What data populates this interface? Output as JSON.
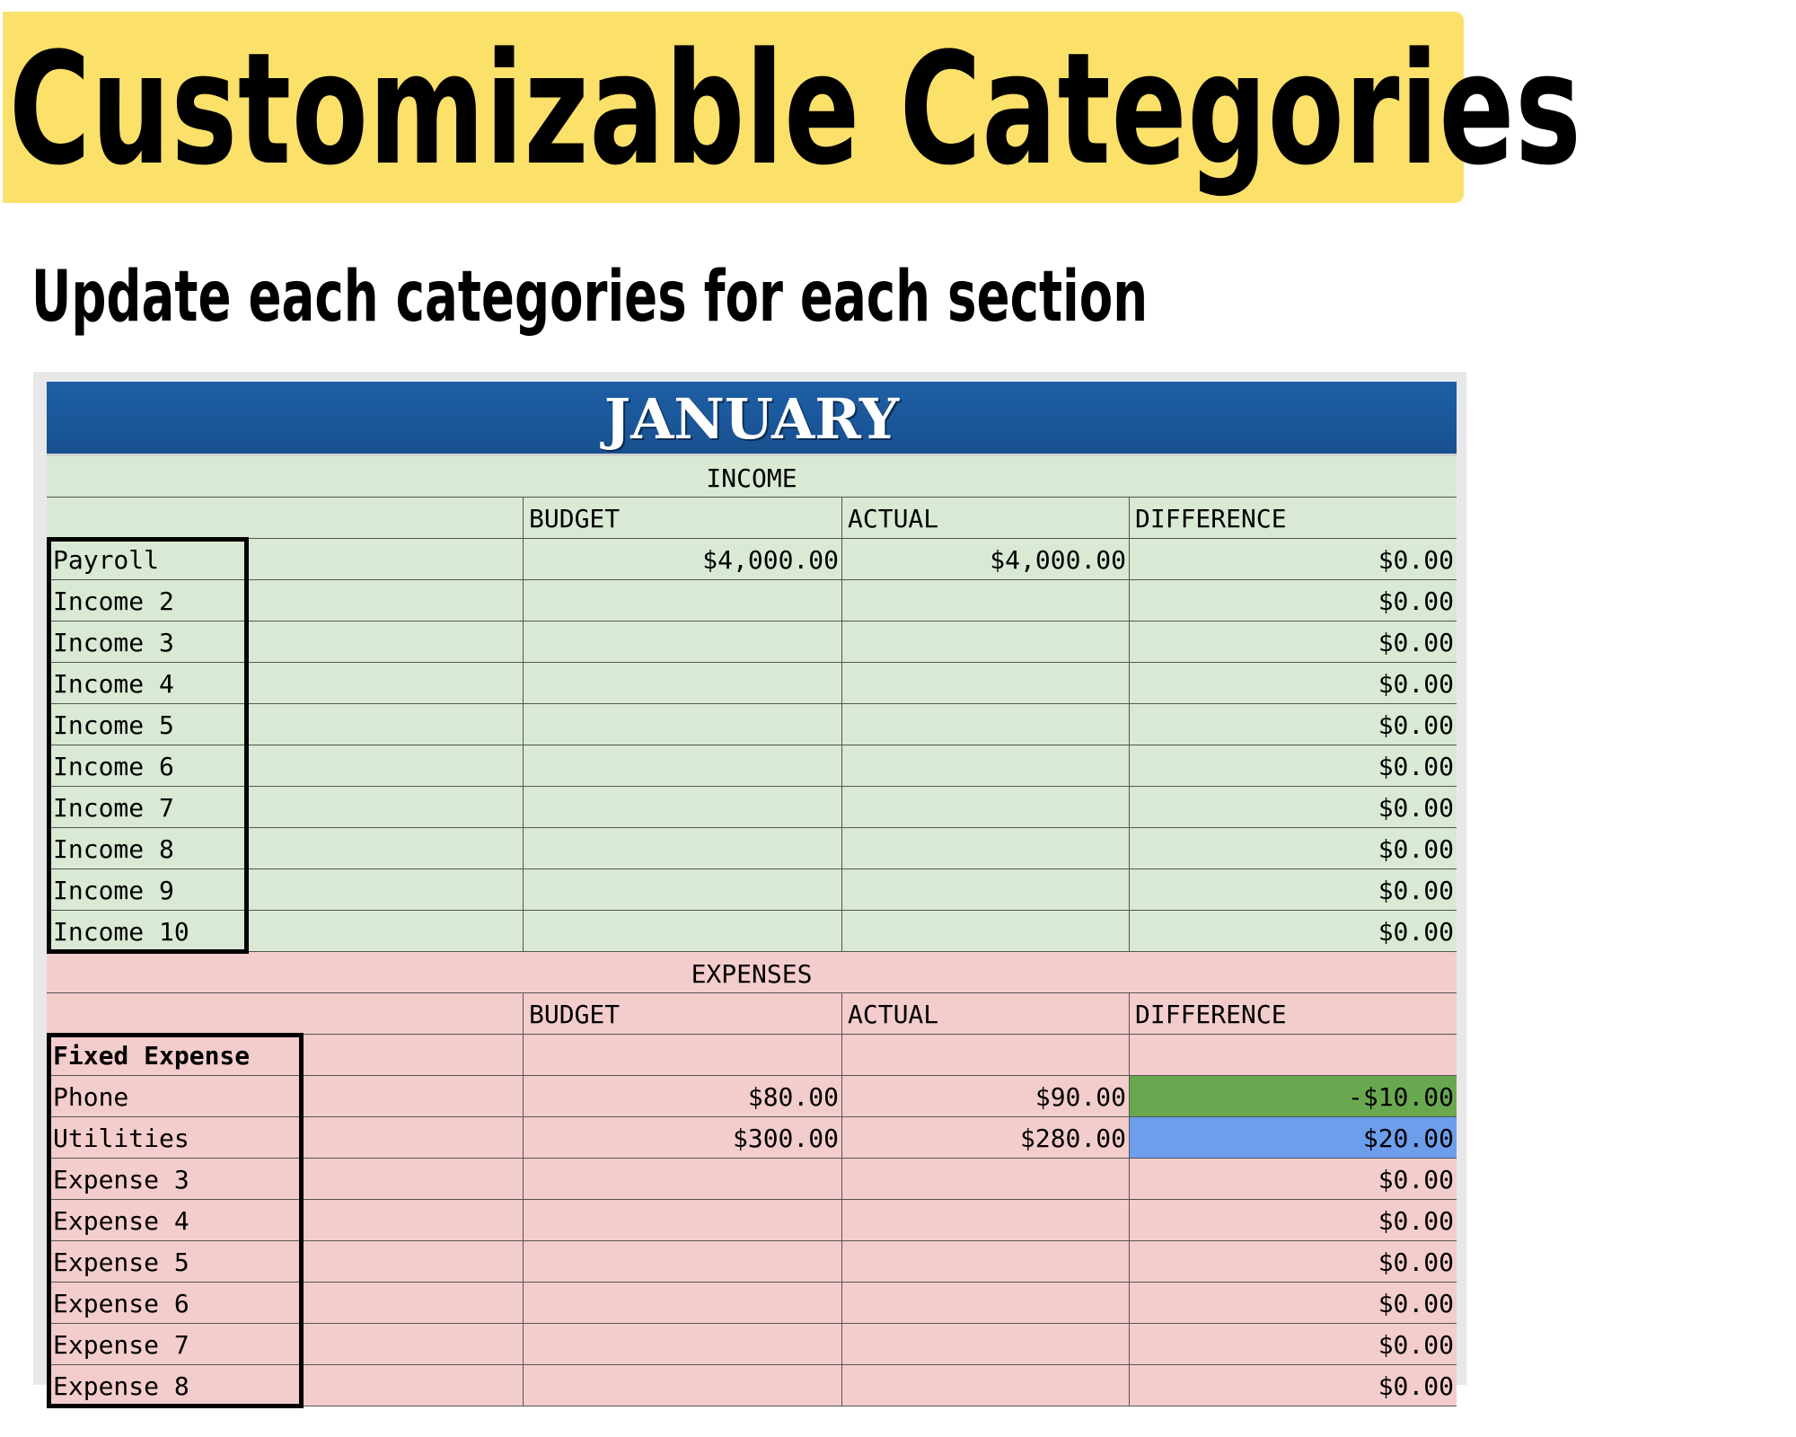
{
  "banner": {
    "title": "Customizable Categories",
    "subtitle": "Update each categories for each section"
  },
  "sheet": {
    "month": "JANUARY",
    "income": {
      "section_title": "INCOME",
      "headers": [
        "",
        "BUDGET",
        "ACTUAL",
        "DIFFERENCE"
      ],
      "rows": [
        {
          "category": "Payroll",
          "budget": "$4,000.00",
          "actual": "$4,000.00",
          "difference": "$0.00"
        },
        {
          "category": "Income 2",
          "budget": "",
          "actual": "",
          "difference": "$0.00"
        },
        {
          "category": "Income 3",
          "budget": "",
          "actual": "",
          "difference": "$0.00"
        },
        {
          "category": "Income 4",
          "budget": "",
          "actual": "",
          "difference": "$0.00"
        },
        {
          "category": "Income 5",
          "budget": "",
          "actual": "",
          "difference": "$0.00"
        },
        {
          "category": "Income 6",
          "budget": "",
          "actual": "",
          "difference": "$0.00"
        },
        {
          "category": "Income 7",
          "budget": "",
          "actual": "",
          "difference": "$0.00"
        },
        {
          "category": "Income 8",
          "budget": "",
          "actual": "",
          "difference": "$0.00"
        },
        {
          "category": "Income 9",
          "budget": "",
          "actual": "",
          "difference": "$0.00"
        },
        {
          "category": "Income 10",
          "budget": "",
          "actual": "",
          "difference": "$0.00"
        }
      ]
    },
    "expenses": {
      "section_title": "EXPENSES",
      "headers": [
        "",
        "BUDGET",
        "ACTUAL",
        "DIFFERENCE"
      ],
      "group_label": "Fixed Expense",
      "rows": [
        {
          "category": "Phone",
          "budget": "$80.00",
          "actual": "$90.00",
          "difference": "-$10.00",
          "highlight": "#6aa84f"
        },
        {
          "category": "Utilities",
          "budget": "$300.00",
          "actual": "$280.00",
          "difference": "$20.00",
          "highlight": "#6d9eeb"
        },
        {
          "category": "Expense 3",
          "budget": "",
          "actual": "",
          "difference": "$0.00"
        },
        {
          "category": "Expense 4",
          "budget": "",
          "actual": "",
          "difference": "$0.00"
        },
        {
          "category": "Expense 5",
          "budget": "",
          "actual": "",
          "difference": "$0.00"
        },
        {
          "category": "Expense 6",
          "budget": "",
          "actual": "",
          "difference": "$0.00"
        },
        {
          "category": "Expense 7",
          "budget": "",
          "actual": "",
          "difference": "$0.00"
        },
        {
          "category": "Expense 8",
          "budget": "",
          "actual": "",
          "difference": "$0.00"
        }
      ]
    }
  },
  "colors": {
    "banner": "#fbe06a",
    "month_header": "#1a5799",
    "income_bg": "#d9e9d3",
    "expense_bg": "#f3cccc"
  }
}
